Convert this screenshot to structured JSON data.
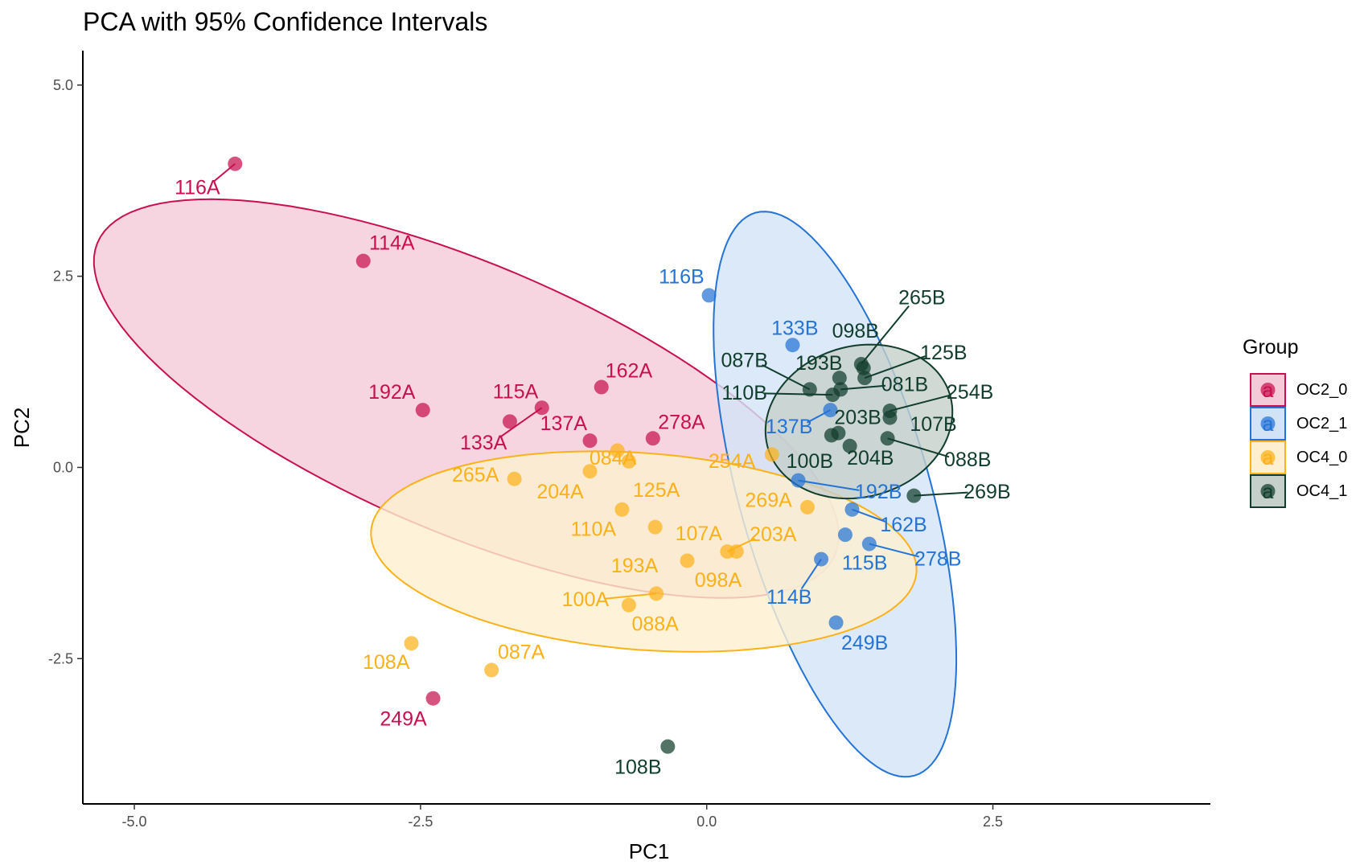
{
  "chart_data": {
    "type": "scatter",
    "title": "PCA with 95% Confidence Intervals",
    "xlabel": "PC1",
    "ylabel": "PC2",
    "xlim": [
      -5.45,
      4.4
    ],
    "ylim": [
      -4.4,
      5.45
    ],
    "x_ticks": [
      -5.0,
      -2.5,
      0.0,
      2.5
    ],
    "x_tick_labels": [
      "-5.0",
      "-2.5",
      "0.0",
      "2.5"
    ],
    "y_ticks": [
      -2.5,
      0.0,
      2.5,
      5.0
    ],
    "y_tick_labels": [
      "-2.5",
      "0.0",
      "2.5",
      "5.0"
    ],
    "grid": false,
    "legend": {
      "title": "Group",
      "position": "right"
    },
    "series": [
      {
        "name": "OC2_0",
        "color": "#c8104e",
        "fill": "#f4c9d8",
        "ellipse": {
          "cx": -2.1,
          "cy": 0.9,
          "rx": 3.85,
          "ry": 1.6,
          "angle_deg": -36
        },
        "points": [
          {
            "label": "116A",
            "x": -4.12,
            "y": 3.97,
            "lx": -4.45,
            "ly": 3.66
          },
          {
            "label": "114A",
            "x": -3.0,
            "y": 2.7,
            "lx": -2.75,
            "ly": 2.93
          },
          {
            "label": "192A",
            "x": -2.48,
            "y": 0.75,
            "lx": -2.75,
            "ly": 0.98
          },
          {
            "label": "115A",
            "x": -1.72,
            "y": 0.6,
            "lx": -1.67,
            "ly": 0.99
          },
          {
            "label": "162A",
            "x": -0.92,
            "y": 1.05,
            "lx": -0.68,
            "ly": 1.26
          },
          {
            "label": "133A",
            "x": -1.44,
            "y": 0.78,
            "lx": -1.95,
            "ly": 0.32
          },
          {
            "label": "137A",
            "x": -1.02,
            "y": 0.35,
            "lx": -1.25,
            "ly": 0.57
          },
          {
            "label": "278A",
            "x": -0.47,
            "y": 0.38,
            "lx": -0.22,
            "ly": 0.59
          },
          {
            "label": "249A",
            "x": -2.39,
            "y": -3.02,
            "lx": -2.65,
            "ly": -3.29
          }
        ]
      },
      {
        "name": "OC2_1",
        "color": "#2473d6",
        "fill": "#d2e3f6",
        "ellipse": {
          "cx": 1.12,
          "cy": -0.35,
          "rx": 3.75,
          "ry": 0.85,
          "angle_deg": -80
        },
        "points": [
          {
            "label": "116B",
            "x": 0.02,
            "y": 2.25,
            "lx": -0.22,
            "ly": 2.49
          },
          {
            "label": "133B",
            "x": 0.75,
            "y": 1.6,
            "lx": 0.77,
            "ly": 1.82
          },
          {
            "label": "137B",
            "x": 1.08,
            "y": 0.75,
            "lx": 0.72,
            "ly": 0.53
          },
          {
            "label": "192B",
            "x": 0.8,
            "y": -0.17,
            "lx": 1.5,
            "ly": -0.32
          },
          {
            "label": "162B",
            "x": 1.27,
            "y": -0.55,
            "lx": 1.72,
            "ly": -0.75
          },
          {
            "label": "278B",
            "x": 1.42,
            "y": -1.0,
            "lx": 2.02,
            "ly": -1.2
          },
          {
            "label": "115B",
            "x": 1.21,
            "y": -0.88,
            "lx": 1.38,
            "ly": -1.25
          },
          {
            "label": "114B",
            "x": 1.0,
            "y": -1.2,
            "lx": 0.72,
            "ly": -1.7
          },
          {
            "label": "249B",
            "x": 1.13,
            "y": -2.03,
            "lx": 1.38,
            "ly": -2.3
          }
        ]
      },
      {
        "name": "OC4_0",
        "color": "#fcb119",
        "fill": "#fef0cf",
        "ellipse": {
          "cx": -0.55,
          "cy": -1.1,
          "rx": 2.4,
          "ry": 1.28,
          "angle_deg": -8
        },
        "points": [
          {
            "label": "084A",
            "x": -0.78,
            "y": 0.22,
            "lx": -0.82,
            "ly": 0.12
          },
          {
            "label": "125A",
            "x": -0.68,
            "y": 0.08,
            "lx": -0.44,
            "ly": -0.3
          },
          {
            "label": "265A",
            "x": -1.68,
            "y": -0.15,
            "lx": -2.02,
            "ly": -0.1
          },
          {
            "label": "204A",
            "x": -1.02,
            "y": -0.05,
            "lx": -1.28,
            "ly": -0.32
          },
          {
            "label": "110A",
            "x": -0.74,
            "y": -0.55,
            "lx": -0.99,
            "ly": -0.81
          },
          {
            "label": "193A",
            "x": -0.45,
            "y": -0.78,
            "lx": -0.63,
            "ly": -1.29
          },
          {
            "label": "107A",
            "x": -0.17,
            "y": -1.22,
            "lx": -0.07,
            "ly": -0.87
          },
          {
            "label": "098A",
            "x": 0.26,
            "y": -1.1,
            "lx": 0.1,
            "ly": -1.48
          },
          {
            "label": "203A",
            "x": 0.18,
            "y": -1.1,
            "lx": 0.58,
            "ly": -0.88
          },
          {
            "label": "254A",
            "x": 0.57,
            "y": 0.17,
            "lx": 0.22,
            "ly": 0.08
          },
          {
            "label": "269A",
            "x": 0.88,
            "y": -0.52,
            "lx": 0.54,
            "ly": -0.43
          },
          {
            "label": "100A",
            "x": -0.44,
            "y": -1.65,
            "lx": -1.06,
            "ly": -1.73
          },
          {
            "label": "088A",
            "x": -0.68,
            "y": -1.8,
            "lx": -0.45,
            "ly": -2.05
          },
          {
            "label": "108A",
            "x": -2.58,
            "y": -2.3,
            "lx": -2.8,
            "ly": -2.55
          },
          {
            "label": "087A",
            "x": -1.88,
            "y": -2.65,
            "lx": -1.62,
            "ly": -2.42
          }
        ]
      },
      {
        "name": "OC4_1",
        "color": "#103d2c",
        "fill": "#c5d0cb",
        "ellipse": {
          "cx": 1.33,
          "cy": 0.6,
          "rx": 1.02,
          "ry": 0.8,
          "angle_deg": 75
        },
        "points": [
          {
            "label": "265B",
            "x": 1.35,
            "y": 1.35,
            "lx": 1.88,
            "ly": 2.22
          },
          {
            "label": "098B",
            "x": 1.37,
            "y": 1.3,
            "lx": 1.3,
            "ly": 1.78
          },
          {
            "label": "125B",
            "x": 1.38,
            "y": 1.17,
            "lx": 2.07,
            "ly": 1.5
          },
          {
            "label": "193B",
            "x": 1.16,
            "y": 1.17,
            "lx": 0.98,
            "ly": 1.36
          },
          {
            "label": "087B",
            "x": 0.9,
            "y": 1.02,
            "lx": 0.33,
            "ly": 1.4
          },
          {
            "label": "081B",
            "x": 1.17,
            "y": 1.02,
            "lx": 1.73,
            "ly": 1.08
          },
          {
            "label": "110B",
            "x": 1.1,
            "y": 0.95,
            "lx": 0.33,
            "ly": 0.97
          },
          {
            "label": "254B",
            "x": 1.6,
            "y": 0.74,
            "lx": 2.3,
            "ly": 0.98
          },
          {
            "label": "107B",
            "x": 1.6,
            "y": 0.65,
            "lx": 1.98,
            "ly": 0.56
          },
          {
            "label": "203B",
            "x": 1.15,
            "y": 0.45,
            "lx": 1.32,
            "ly": 0.65
          },
          {
            "label": "204B",
            "x": 1.25,
            "y": 0.28,
            "lx": 1.43,
            "ly": 0.12
          },
          {
            "label": "100B",
            "x": 1.09,
            "y": 0.42,
            "lx": 0.9,
            "ly": 0.08
          },
          {
            "label": "088B",
            "x": 1.58,
            "y": 0.38,
            "lx": 2.28,
            "ly": 0.1
          },
          {
            "label": "269B",
            "x": 1.81,
            "y": -0.37,
            "lx": 2.45,
            "ly": -0.32
          },
          {
            "label": "108B",
            "x": -0.34,
            "y": -3.65,
            "lx": -0.6,
            "ly": -3.92
          }
        ]
      }
    ]
  }
}
